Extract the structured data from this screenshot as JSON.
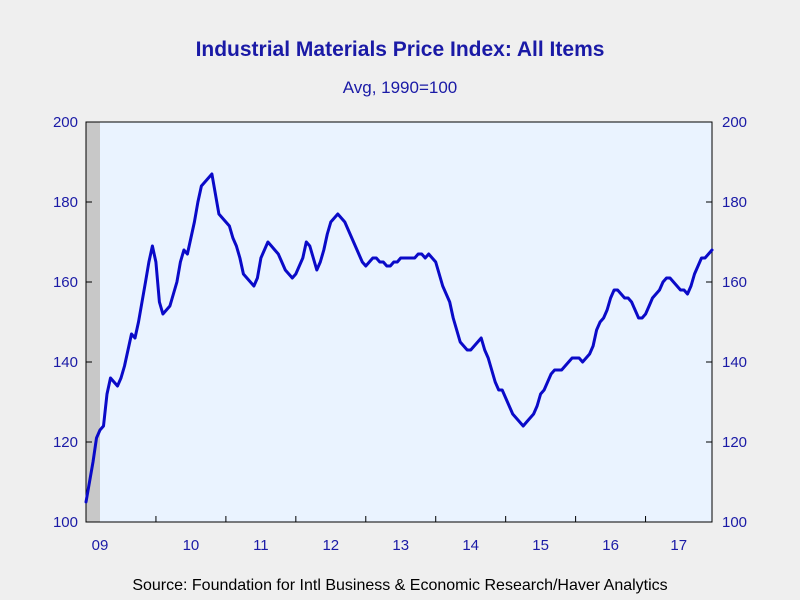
{
  "chart_data": {
    "type": "line",
    "title": "Industrial Materials Price Index: All Items",
    "subtitle": "Avg, 1990=100",
    "source": "Source:  Foundation for Intl Business & Economic Research/Haver Analytics",
    "ylim": [
      100,
      200
    ],
    "yticks": [
      100,
      120,
      140,
      160,
      180,
      200
    ],
    "xlim": [
      2009.0,
      2017.95
    ],
    "xticks": [
      {
        "label": "09",
        "year": 2009
      },
      {
        "label": "10",
        "year": 2010
      },
      {
        "label": "11",
        "year": 2011
      },
      {
        "label": "12",
        "year": 2012
      },
      {
        "label": "13",
        "year": 2013
      },
      {
        "label": "14",
        "year": 2014
      },
      {
        "label": "15",
        "year": 2015
      },
      {
        "label": "16",
        "year": 2016
      },
      {
        "label": "17",
        "year": 2017
      }
    ],
    "recession_shading": {
      "start": 2009.0,
      "end": 2009.2,
      "color": "#c8c8c8"
    },
    "grid": false,
    "colors": {
      "line": "#0a0ac8",
      "plot_background": "#eaf3ff",
      "text": "#1a1aa6"
    },
    "series": [
      {
        "x": [
          2009.0,
          2009.05,
          2009.1,
          2009.15,
          2009.2,
          2009.25,
          2009.3,
          2009.35,
          2009.4,
          2009.45,
          2009.5,
          2009.55,
          2009.6,
          2009.65,
          2009.7,
          2009.75,
          2009.8,
          2009.85,
          2009.9,
          2009.95,
          2010.0,
          2010.05,
          2010.1,
          2010.15,
          2010.2,
          2010.25,
          2010.3,
          2010.35,
          2010.4,
          2010.45,
          2010.5,
          2010.55,
          2010.6,
          2010.65,
          2010.7,
          2010.75,
          2010.8,
          2010.85,
          2010.9,
          2010.95,
          2011.0,
          2011.05,
          2011.1,
          2011.15,
          2011.2,
          2011.25,
          2011.3,
          2011.35,
          2011.4,
          2011.45,
          2011.5,
          2011.55,
          2011.6,
          2011.65,
          2011.7,
          2011.75,
          2011.8,
          2011.85,
          2011.9,
          2011.95,
          2012.0,
          2012.05,
          2012.1,
          2012.15,
          2012.2,
          2012.25,
          2012.3,
          2012.35,
          2012.4,
          2012.45,
          2012.5,
          2012.55,
          2012.6,
          2012.65,
          2012.7,
          2012.75,
          2012.8,
          2012.85,
          2012.9,
          2012.95,
          2013.0,
          2013.05,
          2013.1,
          2013.15,
          2013.2,
          2013.25,
          2013.3,
          2013.35,
          2013.4,
          2013.45,
          2013.5,
          2013.55,
          2013.6,
          2013.65,
          2013.7,
          2013.75,
          2013.8,
          2013.85,
          2013.9,
          2013.95,
          2014.0,
          2014.05,
          2014.1,
          2014.15,
          2014.2,
          2014.25,
          2014.3,
          2014.35,
          2014.4,
          2014.45,
          2014.5,
          2014.55,
          2014.6,
          2014.65,
          2014.7,
          2014.75,
          2014.8,
          2014.85,
          2014.9,
          2014.95,
          2015.0,
          2015.05,
          2015.1,
          2015.15,
          2015.2,
          2015.25,
          2015.3,
          2015.35,
          2015.4,
          2015.45,
          2015.5,
          2015.55,
          2015.6,
          2015.65,
          2015.7,
          2015.75,
          2015.8,
          2015.85,
          2015.9,
          2015.95,
          2016.0,
          2016.05,
          2016.1,
          2016.15,
          2016.2,
          2016.25,
          2016.3,
          2016.35,
          2016.4,
          2016.45,
          2016.5,
          2016.55,
          2016.6,
          2016.65,
          2016.7,
          2016.75,
          2016.8,
          2016.85,
          2016.9,
          2016.95,
          2017.0,
          2017.05,
          2017.1,
          2017.15,
          2017.2,
          2017.25,
          2017.3,
          2017.35,
          2017.4,
          2017.45,
          2017.5,
          2017.55,
          2017.6,
          2017.65,
          2017.7,
          2017.75,
          2017.8,
          2017.85,
          2017.9,
          2017.95
        ],
        "y": [
          105,
          110,
          115,
          121,
          123,
          124,
          132,
          136,
          135,
          134,
          136,
          139,
          143,
          147,
          146,
          150,
          155,
          160,
          165,
          169,
          165,
          155,
          152,
          153,
          154,
          157,
          160,
          165,
          168,
          167,
          171,
          175,
          180,
          184,
          185,
          186,
          187,
          182,
          177,
          176,
          175,
          174,
          171,
          169,
          166,
          162,
          161,
          160,
          159,
          161,
          166,
          168,
          170,
          169,
          168,
          167,
          165,
          163,
          162,
          161,
          162,
          164,
          166,
          170,
          169,
          166,
          163,
          165,
          168,
          172,
          175,
          176,
          177,
          176,
          175,
          173,
          171,
          169,
          167,
          165,
          164,
          165,
          166,
          166,
          165,
          165,
          164,
          164,
          165,
          165,
          166,
          166,
          166,
          166,
          166,
          167,
          167,
          166,
          167,
          166,
          165,
          162,
          159,
          157,
          155,
          151,
          148,
          145,
          144,
          143,
          143,
          144,
          145,
          146,
          143,
          141,
          138,
          135,
          133,
          133,
          131,
          129,
          127,
          126,
          125,
          124,
          125,
          126,
          127,
          129,
          132,
          133,
          135,
          137,
          138,
          138,
          138,
          139,
          140,
          141,
          141,
          141,
          140,
          141,
          142,
          144,
          148,
          150,
          151,
          153,
          156,
          158,
          158,
          157,
          156,
          156,
          155,
          153,
          151,
          151,
          152,
          154,
          156,
          157,
          158,
          160,
          161,
          161,
          160,
          159,
          158,
          158,
          157,
          159,
          162,
          164,
          166,
          166,
          167,
          168
        ]
      }
    ]
  }
}
